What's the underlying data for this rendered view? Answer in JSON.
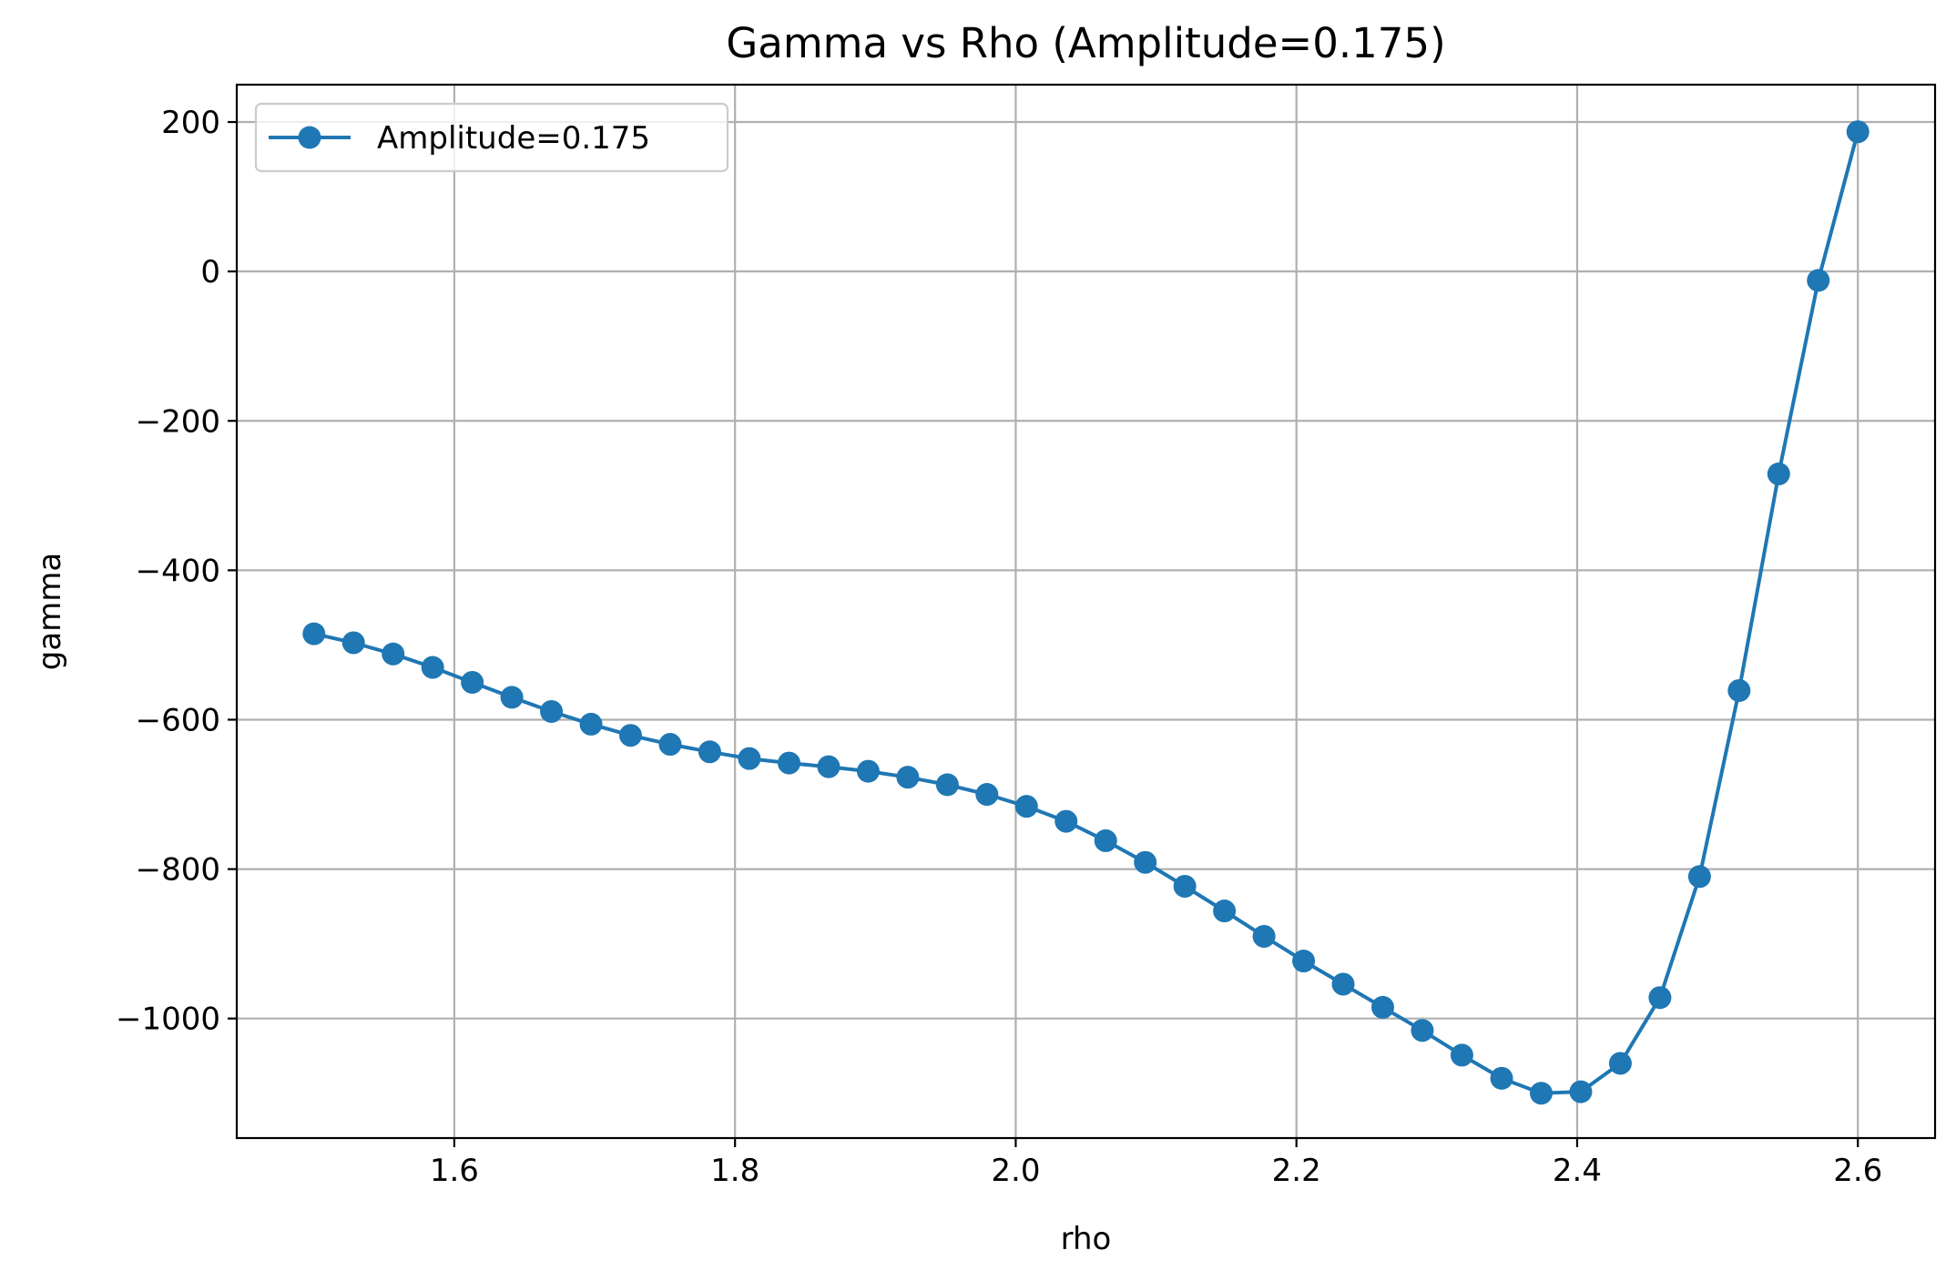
{
  "chart_data": {
    "type": "line",
    "title": "Gamma vs Rho (Amplitude=0.175)",
    "xlabel": "rho",
    "ylabel": "gamma",
    "xlim": [
      1.445,
      2.655
    ],
    "ylim": [
      -1160,
      250
    ],
    "xticks": [
      1.6,
      1.8,
      2.0,
      2.2,
      2.4,
      2.6
    ],
    "xtick_labels": [
      "1.6",
      "1.8",
      "2.0",
      "2.2",
      "2.4",
      "2.6"
    ],
    "yticks": [
      200,
      0,
      -200,
      -400,
      -600,
      -800,
      -1000
    ],
    "ytick_labels": [
      "200",
      "0",
      "−200",
      "−400",
      "−600",
      "−800",
      "−1000"
    ],
    "grid": true,
    "legend_position": "top-left",
    "series": [
      {
        "name": "Amplitude=0.175",
        "color": "#1f77b4",
        "marker": "circle",
        "x": [
          1.5,
          1.5282,
          1.5564,
          1.5846,
          1.6128,
          1.641,
          1.6692,
          1.6974,
          1.7256,
          1.7538,
          1.782,
          1.8102,
          1.8385,
          1.8667,
          1.8949,
          1.9231,
          1.9513,
          1.9795,
          2.0077,
          2.0359,
          2.0641,
          2.0923,
          2.1205,
          2.1487,
          2.1769,
          2.2051,
          2.2333,
          2.2615,
          2.2897,
          2.3179,
          2.3462,
          2.3744,
          2.4026,
          2.4308,
          2.459,
          2.4872,
          2.5154,
          2.5436,
          2.5718,
          2.6
        ],
        "y": [
          -485,
          -497,
          -512,
          -530,
          -550,
          -570,
          -589,
          -606,
          -621,
          -633,
          -643,
          -652,
          -658,
          -663,
          -669,
          -677,
          -687,
          -700,
          -716,
          -736,
          -762,
          -791,
          -823,
          -856,
          -890,
          -923,
          -954,
          -985,
          -1016,
          -1049,
          -1080,
          -1100,
          -1098,
          -1060,
          -972,
          -810,
          -561,
          -271,
          -12,
          187
        ]
      }
    ]
  }
}
